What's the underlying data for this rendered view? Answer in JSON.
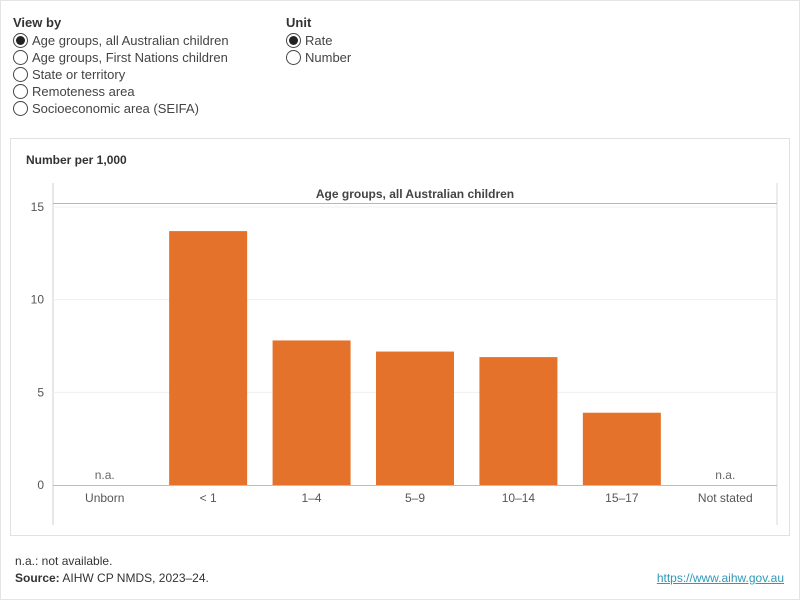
{
  "controls": {
    "view_by": {
      "title": "View by",
      "options": [
        {
          "label": "Age groups, all Australian children",
          "selected": true
        },
        {
          "label": "Age groups, First Nations children",
          "selected": false
        },
        {
          "label": "State or territory",
          "selected": false
        },
        {
          "label": "Remoteness area",
          "selected": false
        },
        {
          "label": "Socioeconomic area (SEIFA)",
          "selected": false
        }
      ]
    },
    "unit": {
      "title": "Unit",
      "options": [
        {
          "label": "Rate",
          "selected": true
        },
        {
          "label": "Number",
          "selected": false
        }
      ]
    }
  },
  "chart_data": {
    "type": "bar",
    "title": "Age groups, all Australian children",
    "ylabel": "Number per 1,000",
    "xlabel": "",
    "ylim": [
      0,
      15
    ],
    "yticks": [
      0,
      5,
      10,
      15
    ],
    "grid": true,
    "bar_color": "#e5722a",
    "categories": [
      "Unborn",
      "< 1",
      "1–4",
      "5–9",
      "10–14",
      "15–17",
      "Not stated"
    ],
    "values": [
      null,
      13.7,
      7.8,
      7.2,
      6.9,
      3.9,
      null
    ],
    "value_labels": [
      "n.a.",
      "",
      "",
      "",
      "",
      "",
      "n.a."
    ]
  },
  "footer": {
    "note": "n.a.: not available.",
    "source_label": "Source:",
    "source_text": " AIHW CP NMDS, 2023–24.",
    "link": "https://www.aihw.gov.au"
  }
}
